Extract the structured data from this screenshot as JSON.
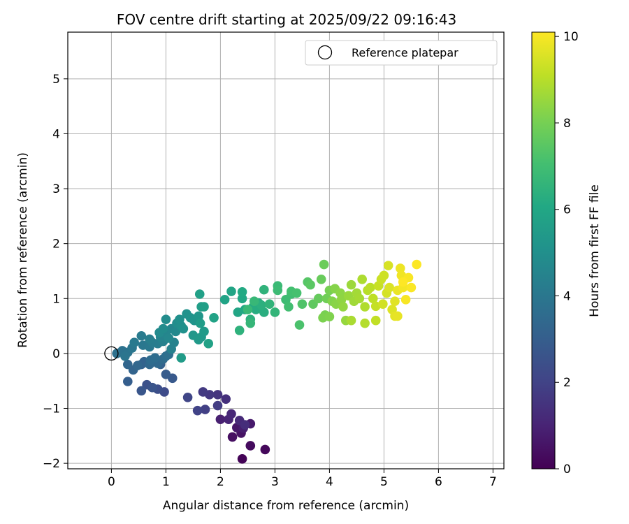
{
  "chart_data": {
    "type": "scatter",
    "title": "FOV centre drift starting at 2025/09/22 09:16:43",
    "xlabel": "Angular distance from reference (arcmin)",
    "ylabel": "Rotation from reference (arcmin)",
    "xlim": [
      -0.8,
      7.2
    ],
    "ylim": [
      -2.1,
      5.85
    ],
    "xticks": [
      0,
      1,
      2,
      3,
      4,
      5,
      6,
      7
    ],
    "yticks": [
      -2,
      -1,
      0,
      1,
      2,
      3,
      4,
      5
    ],
    "grid": true,
    "legend": {
      "placement": "top-right",
      "entries": [
        "Reference platepar"
      ]
    },
    "reference_point": {
      "label": "Reference platepar",
      "x": 0,
      "y": 0
    },
    "colorbar": {
      "label": "Hours from first FF file",
      "colormap": "viridis",
      "range": [
        0,
        10.1
      ],
      "ticks": [
        0,
        2,
        4,
        6,
        8,
        10
      ]
    },
    "series": [
      {
        "points": [
          [
            2.4,
            -1.92,
            0.1
          ],
          [
            2.82,
            -1.75,
            0.2
          ],
          [
            2.55,
            -1.68,
            0.3
          ],
          [
            2.22,
            -1.52,
            0.4
          ],
          [
            2.38,
            -1.45,
            0.5
          ],
          [
            2.3,
            -1.35,
            0.6
          ],
          [
            2.55,
            -1.28,
            0.7
          ],
          [
            2.42,
            -1.36,
            0.8
          ],
          [
            2.0,
            -1.2,
            0.9
          ],
          [
            2.15,
            -1.2,
            1.0
          ],
          [
            2.2,
            -1.1,
            1.1
          ],
          [
            2.35,
            -1.22,
            1.2
          ],
          [
            2.45,
            -1.3,
            1.3
          ],
          [
            2.1,
            -0.83,
            1.4
          ],
          [
            1.95,
            -0.75,
            1.5
          ],
          [
            1.8,
            -0.75,
            1.6
          ],
          [
            1.68,
            -0.7,
            1.7
          ],
          [
            1.95,
            -0.95,
            1.8
          ],
          [
            1.72,
            -1.02,
            1.9
          ],
          [
            1.58,
            -1.04,
            2.0
          ],
          [
            1.4,
            -0.8,
            2.1
          ],
          [
            0.97,
            -0.7,
            2.3
          ],
          [
            0.85,
            -0.65,
            2.4
          ],
          [
            0.65,
            -0.57,
            2.5
          ],
          [
            0.75,
            -0.62,
            2.6
          ],
          [
            0.55,
            -0.68,
            2.7
          ],
          [
            1.12,
            -0.45,
            2.8
          ],
          [
            1.0,
            -0.38,
            2.9
          ],
          [
            0.3,
            -0.51,
            3.0
          ],
          [
            0.9,
            -0.2,
            3.1
          ],
          [
            0.55,
            -0.2,
            3.15
          ],
          [
            0.6,
            -0.15,
            3.2
          ],
          [
            0.4,
            -0.3,
            3.25
          ],
          [
            0.3,
            -0.2,
            3.3
          ],
          [
            0.48,
            -0.22,
            3.35
          ],
          [
            0.7,
            -0.2,
            3.4
          ],
          [
            0.85,
            -0.18,
            3.45
          ],
          [
            0.95,
            -0.1,
            3.5
          ],
          [
            0.72,
            -0.12,
            3.55
          ],
          [
            0.8,
            -0.08,
            3.6
          ],
          [
            1.0,
            -0.05,
            3.65
          ],
          [
            1.05,
            -0.02,
            3.7
          ],
          [
            0.1,
            0.0,
            3.75
          ],
          [
            0.2,
            0.05,
            3.8
          ],
          [
            0.3,
            0.02,
            3.85
          ],
          [
            0.25,
            -0.05,
            3.9
          ],
          [
            0.38,
            0.1,
            3.95
          ],
          [
            0.58,
            0.15,
            4.0
          ],
          [
            0.7,
            0.12,
            4.05
          ],
          [
            0.42,
            0.2,
            4.1
          ],
          [
            0.55,
            0.32,
            4.15
          ],
          [
            0.75,
            0.2,
            4.2
          ],
          [
            0.85,
            0.18,
            4.25
          ],
          [
            0.7,
            0.26,
            4.3
          ],
          [
            0.95,
            0.22,
            4.35
          ],
          [
            1.1,
            0.08,
            4.4
          ],
          [
            1.15,
            0.2,
            4.45
          ],
          [
            0.9,
            0.3,
            4.5
          ],
          [
            1.0,
            0.35,
            4.55
          ],
          [
            1.1,
            0.45,
            4.6
          ],
          [
            1.05,
            0.28,
            4.65
          ],
          [
            1.18,
            0.4,
            4.7
          ],
          [
            0.88,
            0.38,
            4.75
          ],
          [
            0.95,
            0.45,
            4.8
          ],
          [
            1.0,
            0.62,
            4.85
          ],
          [
            1.2,
            0.55,
            4.9
          ],
          [
            1.28,
            0.5,
            4.95
          ],
          [
            1.25,
            0.62,
            5.0
          ],
          [
            1.32,
            0.45,
            5.05
          ],
          [
            1.38,
            0.72,
            5.1
          ],
          [
            1.45,
            0.65,
            5.15
          ],
          [
            1.52,
            0.6,
            5.2
          ],
          [
            1.6,
            0.68,
            5.25
          ],
          [
            1.5,
            0.33,
            5.3
          ],
          [
            1.65,
            0.3,
            5.35
          ],
          [
            1.6,
            0.25,
            5.4
          ],
          [
            1.7,
            0.4,
            5.45
          ],
          [
            1.28,
            -0.08,
            5.5
          ],
          [
            1.63,
            0.55,
            5.55
          ],
          [
            1.65,
            0.85,
            5.6
          ],
          [
            1.7,
            0.85,
            5.65
          ],
          [
            1.62,
            1.08,
            5.7
          ],
          [
            1.78,
            0.18,
            5.75
          ],
          [
            1.88,
            0.65,
            5.8
          ],
          [
            2.08,
            0.98,
            5.85
          ],
          [
            2.2,
            1.13,
            5.9
          ],
          [
            2.32,
            0.75,
            5.95
          ],
          [
            2.4,
            1.0,
            6.0
          ],
          [
            2.45,
            0.8,
            6.05
          ],
          [
            2.4,
            1.12,
            6.1
          ],
          [
            2.6,
            0.85,
            6.15
          ],
          [
            2.7,
            0.92,
            6.2
          ],
          [
            2.65,
            0.8,
            6.25
          ],
          [
            2.8,
            0.75,
            6.3
          ],
          [
            2.75,
            0.88,
            6.35
          ],
          [
            2.55,
            0.62,
            6.4
          ],
          [
            2.35,
            0.42,
            6.45
          ],
          [
            2.8,
            1.16,
            6.5
          ],
          [
            2.9,
            0.9,
            6.55
          ],
          [
            3.0,
            0.75,
            6.6
          ],
          [
            2.55,
            0.55,
            6.65
          ],
          [
            2.62,
            0.95,
            6.7
          ],
          [
            2.5,
            0.8,
            6.75
          ],
          [
            3.05,
            1.23,
            6.8
          ],
          [
            3.05,
            1.15,
            6.85
          ],
          [
            3.2,
            0.98,
            6.9
          ],
          [
            3.3,
            1.08,
            6.95
          ],
          [
            3.25,
            0.85,
            7.0
          ],
          [
            3.3,
            1.13,
            7.05
          ],
          [
            3.4,
            1.1,
            7.1
          ],
          [
            3.45,
            0.52,
            7.2
          ],
          [
            3.5,
            0.9,
            7.3
          ],
          [
            3.6,
            1.3,
            7.4
          ],
          [
            3.65,
            1.25,
            7.5
          ],
          [
            3.7,
            0.9,
            7.6
          ],
          [
            3.8,
            1.0,
            7.7
          ],
          [
            3.85,
            1.35,
            7.75
          ],
          [
            3.9,
            1.62,
            7.8
          ],
          [
            3.95,
            1.0,
            7.9
          ],
          [
            4.0,
            1.15,
            8.0
          ],
          [
            3.92,
            0.7,
            8.05
          ],
          [
            3.88,
            0.65,
            8.1
          ],
          [
            4.0,
            0.67,
            8.15
          ],
          [
            4.05,
            0.95,
            8.2
          ],
          [
            4.1,
            1.18,
            8.25
          ],
          [
            4.12,
            0.9,
            8.3
          ],
          [
            4.2,
            1.1,
            8.35
          ],
          [
            4.22,
            0.98,
            8.4
          ],
          [
            4.25,
            0.85,
            8.45
          ],
          [
            4.3,
            0.6,
            8.5
          ],
          [
            4.35,
            1.05,
            8.55
          ],
          [
            4.4,
            1.25,
            8.6
          ],
          [
            4.45,
            0.95,
            8.65
          ],
          [
            4.5,
            1.1,
            8.7
          ],
          [
            4.55,
            1.0,
            8.75
          ],
          [
            4.4,
            0.6,
            8.8
          ],
          [
            4.6,
            1.35,
            8.85
          ],
          [
            4.65,
            0.85,
            8.9
          ],
          [
            4.65,
            0.55,
            8.95
          ],
          [
            4.7,
            1.15,
            9.0
          ],
          [
            4.75,
            1.2,
            9.05
          ],
          [
            4.8,
            1.0,
            9.1
          ],
          [
            4.85,
            0.6,
            9.15
          ],
          [
            4.85,
            0.86,
            9.2
          ],
          [
            4.9,
            1.23,
            9.25
          ],
          [
            4.95,
            1.35,
            9.3
          ],
          [
            5.0,
            1.42,
            9.35
          ],
          [
            4.98,
            0.9,
            9.4
          ],
          [
            5.05,
            1.1,
            9.45
          ],
          [
            5.08,
            1.6,
            9.5
          ],
          [
            5.1,
            1.2,
            9.55
          ],
          [
            5.15,
            0.8,
            9.6
          ],
          [
            5.2,
            0.95,
            9.65
          ],
          [
            5.2,
            0.68,
            9.7
          ],
          [
            5.25,
            0.68,
            9.75
          ],
          [
            5.25,
            1.15,
            9.8
          ],
          [
            5.3,
            1.55,
            9.85
          ],
          [
            5.32,
            1.42,
            9.9
          ],
          [
            5.35,
            1.2,
            9.95
          ],
          [
            5.4,
            0.98,
            10.0
          ],
          [
            5.45,
            1.38,
            10.02
          ],
          [
            5.5,
            1.2,
            10.05
          ],
          [
            5.6,
            1.62,
            10.08
          ],
          [
            5.35,
            1.3,
            10.1
          ]
        ]
      }
    ]
  }
}
